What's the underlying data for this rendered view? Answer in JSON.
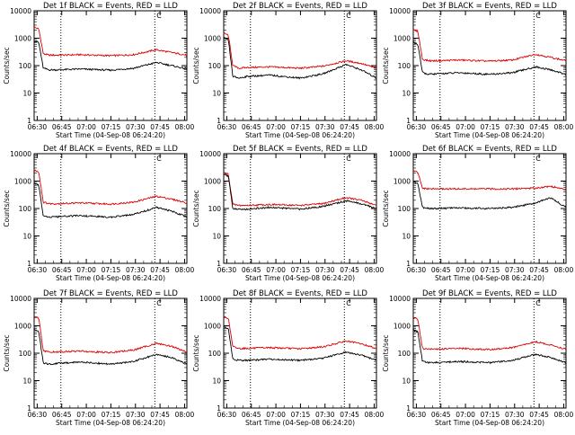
{
  "chart_data": [
    {
      "type": "line",
      "title": "Det 1f BLACK = Events, RED = LLD",
      "xlabel": "Start Time (04-Sep-08 06:24:20)",
      "ylabel": "Counts/sec",
      "x_ticks": [
        "06:30",
        "06:45",
        "07:00",
        "07:15",
        "07:30",
        "07:45",
        "08:00"
      ],
      "y_ticks": [
        "1",
        "10",
        "100",
        "1000",
        "10000"
      ],
      "ylim": [
        1,
        10000
      ],
      "scale": "log",
      "marker": "C",
      "series": [
        {
          "name": "LLD",
          "color": "#dd0000",
          "x": [
            0,
            0.03,
            0.06,
            0.1,
            0.15,
            0.3,
            0.5,
            0.65,
            0.8,
            0.9,
            1
          ],
          "values": [
            2500,
            2200,
            270,
            240,
            240,
            250,
            230,
            250,
            380,
            300,
            240
          ]
        },
        {
          "name": "Events",
          "color": "#000000",
          "x": [
            0,
            0.03,
            0.06,
            0.1,
            0.15,
            0.3,
            0.5,
            0.65,
            0.8,
            0.9,
            1
          ],
          "values": [
            800,
            700,
            80,
            70,
            70,
            75,
            68,
            80,
            130,
            100,
            75
          ]
        }
      ]
    },
    {
      "type": "line",
      "title": "Det 2f BLACK = Events, RED = LLD",
      "xlabel": "Start Time (04-Sep-08 06:24:20)",
      "ylabel": "Counts/sec",
      "x_ticks": [
        "06:30",
        "06:45",
        "07:00",
        "07:15",
        "07:30",
        "07:45",
        "08:00"
      ],
      "y_ticks": [
        "1",
        "10",
        "100",
        "1000",
        "10000"
      ],
      "ylim": [
        1,
        10000
      ],
      "scale": "log",
      "marker": "C",
      "series": [
        {
          "name": "LLD",
          "color": "#dd0000",
          "x": [
            0,
            0.03,
            0.06,
            0.1,
            0.15,
            0.3,
            0.5,
            0.65,
            0.8,
            0.9,
            1
          ],
          "values": [
            1500,
            1300,
            100,
            80,
            85,
            90,
            80,
            95,
            150,
            120,
            80
          ]
        },
        {
          "name": "Events",
          "color": "#000000",
          "x": [
            0,
            0.03,
            0.06,
            0.1,
            0.15,
            0.3,
            0.5,
            0.65,
            0.8,
            0.9,
            1
          ],
          "values": [
            1000,
            900,
            40,
            35,
            40,
            45,
            35,
            50,
            110,
            70,
            35
          ]
        }
      ]
    },
    {
      "type": "line",
      "title": "Det 3f BLACK = Events, RED = LLD",
      "xlabel": "Start Time (04-Sep-08 06:24:20)",
      "ylabel": "Counts/sec",
      "x_ticks": [
        "06:30",
        "06:45",
        "07:00",
        "07:15",
        "07:30",
        "07:45",
        "08:00"
      ],
      "y_ticks": [
        "1",
        "10",
        "100",
        "1000",
        "10000"
      ],
      "ylim": [
        1,
        10000
      ],
      "scale": "log",
      "marker": "C",
      "series": [
        {
          "name": "LLD",
          "color": "#dd0000",
          "x": [
            0,
            0.03,
            0.06,
            0.1,
            0.15,
            0.3,
            0.5,
            0.65,
            0.8,
            0.9,
            1
          ],
          "values": [
            2000,
            1800,
            170,
            150,
            150,
            160,
            145,
            160,
            260,
            200,
            150
          ]
        },
        {
          "name": "Events",
          "color": "#000000",
          "x": [
            0,
            0.03,
            0.06,
            0.1,
            0.15,
            0.3,
            0.5,
            0.65,
            0.8,
            0.9,
            1
          ],
          "values": [
            700,
            600,
            55,
            48,
            50,
            55,
            48,
            55,
            90,
            70,
            48
          ]
        }
      ]
    },
    {
      "type": "line",
      "title": "Det 4f BLACK = Events, RED = LLD",
      "xlabel": "Start Time (04-Sep-08 06:24:20)",
      "ylabel": "Counts/sec",
      "x_ticks": [
        "06:30",
        "06:45",
        "07:00",
        "07:15",
        "07:30",
        "07:45",
        "08:00"
      ],
      "y_ticks": [
        "1",
        "10",
        "100",
        "1000",
        "10000"
      ],
      "ylim": [
        1,
        10000
      ],
      "scale": "log",
      "marker": "C",
      "series": [
        {
          "name": "LLD",
          "color": "#dd0000",
          "x": [
            0,
            0.03,
            0.06,
            0.1,
            0.15,
            0.3,
            0.5,
            0.65,
            0.8,
            0.9,
            1
          ],
          "values": [
            2500,
            2200,
            170,
            150,
            150,
            160,
            145,
            170,
            280,
            220,
            160
          ]
        },
        {
          "name": "Events",
          "color": "#000000",
          "x": [
            0,
            0.03,
            0.06,
            0.1,
            0.15,
            0.3,
            0.5,
            0.65,
            0.8,
            0.9,
            1
          ],
          "values": [
            800,
            700,
            55,
            48,
            50,
            55,
            48,
            60,
            110,
            80,
            50
          ]
        }
      ]
    },
    {
      "type": "line",
      "title": "Det 5f BLACK = Events, RED = LLD",
      "xlabel": "Start Time (04-Sep-08 06:24:20)",
      "ylabel": "Counts/sec",
      "x_ticks": [
        "06:30",
        "06:45",
        "07:00",
        "07:15",
        "07:30",
        "07:45",
        "08:00"
      ],
      "y_ticks": [
        "1",
        "10",
        "100",
        "1000",
        "10000"
      ],
      "ylim": [
        1,
        10000
      ],
      "scale": "log",
      "marker": "C",
      "series": [
        {
          "name": "LLD",
          "color": "#dd0000",
          "x": [
            0,
            0.03,
            0.06,
            0.1,
            0.15,
            0.3,
            0.5,
            0.65,
            0.8,
            0.9,
            1
          ],
          "values": [
            2000,
            1800,
            140,
            130,
            130,
            140,
            130,
            150,
            250,
            200,
            130
          ]
        },
        {
          "name": "Events",
          "color": "#000000",
          "x": [
            0,
            0.03,
            0.06,
            0.1,
            0.15,
            0.3,
            0.5,
            0.65,
            0.8,
            0.9,
            1
          ],
          "values": [
            1800,
            1500,
            100,
            95,
            95,
            110,
            95,
            120,
            190,
            150,
            100
          ]
        }
      ]
    },
    {
      "type": "line",
      "title": "Det 6f BLACK = Events, RED = LLD",
      "xlabel": "Start Time (04-Sep-08 06:24:20)",
      "ylabel": "Counts/sec",
      "x_ticks": [
        "06:30",
        "06:45",
        "07:00",
        "07:15",
        "07:30",
        "07:45",
        "08:00"
      ],
      "y_ticks": [
        "1",
        "10",
        "100",
        "1000",
        "10000"
      ],
      "ylim": [
        1,
        10000
      ],
      "scale": "log",
      "marker": "C",
      "series": [
        {
          "name": "LLD",
          "color": "#dd0000",
          "x": [
            0,
            0.03,
            0.06,
            0.1,
            0.15,
            0.3,
            0.5,
            0.65,
            0.8,
            0.9,
            1
          ],
          "values": [
            2500,
            2000,
            550,
            520,
            520,
            520,
            520,
            520,
            560,
            650,
            480
          ]
        },
        {
          "name": "Events",
          "color": "#000000",
          "x": [
            0,
            0.03,
            0.06,
            0.1,
            0.15,
            0.3,
            0.5,
            0.65,
            0.8,
            0.9,
            1
          ],
          "values": [
            1000,
            800,
            110,
            100,
            100,
            105,
            100,
            110,
            160,
            250,
            110
          ]
        }
      ]
    },
    {
      "type": "line",
      "title": "Det 7f BLACK = Events, RED = LLD",
      "xlabel": "Start Time (04-Sep-08 06:24:20)",
      "ylabel": "Counts/sec",
      "x_ticks": [
        "06:30",
        "06:45",
        "07:00",
        "07:15",
        "07:30",
        "07:45",
        "08:00"
      ],
      "y_ticks": [
        "1",
        "10",
        "100",
        "1000",
        "10000"
      ],
      "ylim": [
        1,
        10000
      ],
      "scale": "log",
      "marker": "C",
      "series": [
        {
          "name": "LLD",
          "color": "#dd0000",
          "x": [
            0,
            0.03,
            0.06,
            0.1,
            0.15,
            0.3,
            0.5,
            0.65,
            0.8,
            0.9,
            1
          ],
          "values": [
            2200,
            1900,
            120,
            110,
            110,
            120,
            105,
            130,
            230,
            180,
            110
          ]
        },
        {
          "name": "Events",
          "color": "#000000",
          "x": [
            0,
            0.03,
            0.06,
            0.1,
            0.15,
            0.3,
            0.5,
            0.65,
            0.8,
            0.9,
            1
          ],
          "values": [
            700,
            600,
            45,
            40,
            42,
            48,
            40,
            50,
            90,
            70,
            40
          ]
        }
      ]
    },
    {
      "type": "line",
      "title": "Det 8f BLACK = Events, RED = LLD",
      "xlabel": "Start Time (04-Sep-08 06:24:20)",
      "ylabel": "Counts/sec",
      "x_ticks": [
        "06:30",
        "06:45",
        "07:00",
        "07:15",
        "07:30",
        "07:45",
        "08:00"
      ],
      "y_ticks": [
        "1",
        "10",
        "100",
        "1000",
        "10000"
      ],
      "ylim": [
        1,
        10000
      ],
      "scale": "log",
      "marker": "C",
      "series": [
        {
          "name": "LLD",
          "color": "#dd0000",
          "x": [
            0,
            0.03,
            0.06,
            0.1,
            0.15,
            0.3,
            0.5,
            0.65,
            0.8,
            0.9,
            1
          ],
          "values": [
            2200,
            1900,
            170,
            150,
            150,
            160,
            145,
            170,
            280,
            220,
            150
          ]
        },
        {
          "name": "Events",
          "color": "#000000",
          "x": [
            0,
            0.03,
            0.06,
            0.1,
            0.15,
            0.3,
            0.5,
            0.65,
            0.8,
            0.9,
            1
          ],
          "values": [
            900,
            800,
            60,
            55,
            55,
            60,
            55,
            65,
            110,
            85,
            55
          ]
        }
      ]
    },
    {
      "type": "line",
      "title": "Det 9f BLACK = Events, RED = LLD",
      "xlabel": "Start Time (04-Sep-08 06:24:20)",
      "ylabel": "Counts/sec",
      "x_ticks": [
        "06:30",
        "06:45",
        "07:00",
        "07:15",
        "07:30",
        "07:45",
        "08:00"
      ],
      "y_ticks": [
        "1",
        "10",
        "100",
        "1000",
        "10000"
      ],
      "ylim": [
        1,
        10000
      ],
      "scale": "log",
      "marker": "C",
      "series": [
        {
          "name": "LLD",
          "color": "#dd0000",
          "x": [
            0,
            0.03,
            0.06,
            0.1,
            0.15,
            0.3,
            0.5,
            0.65,
            0.8,
            0.9,
            1
          ],
          "values": [
            2000,
            1700,
            150,
            140,
            140,
            150,
            135,
            160,
            260,
            200,
            140
          ]
        },
        {
          "name": "Events",
          "color": "#000000",
          "x": [
            0,
            0.03,
            0.06,
            0.1,
            0.15,
            0.3,
            0.5,
            0.65,
            0.8,
            0.9,
            1
          ],
          "values": [
            700,
            600,
            50,
            45,
            46,
            50,
            45,
            55,
            90,
            70,
            45
          ]
        }
      ]
    }
  ]
}
